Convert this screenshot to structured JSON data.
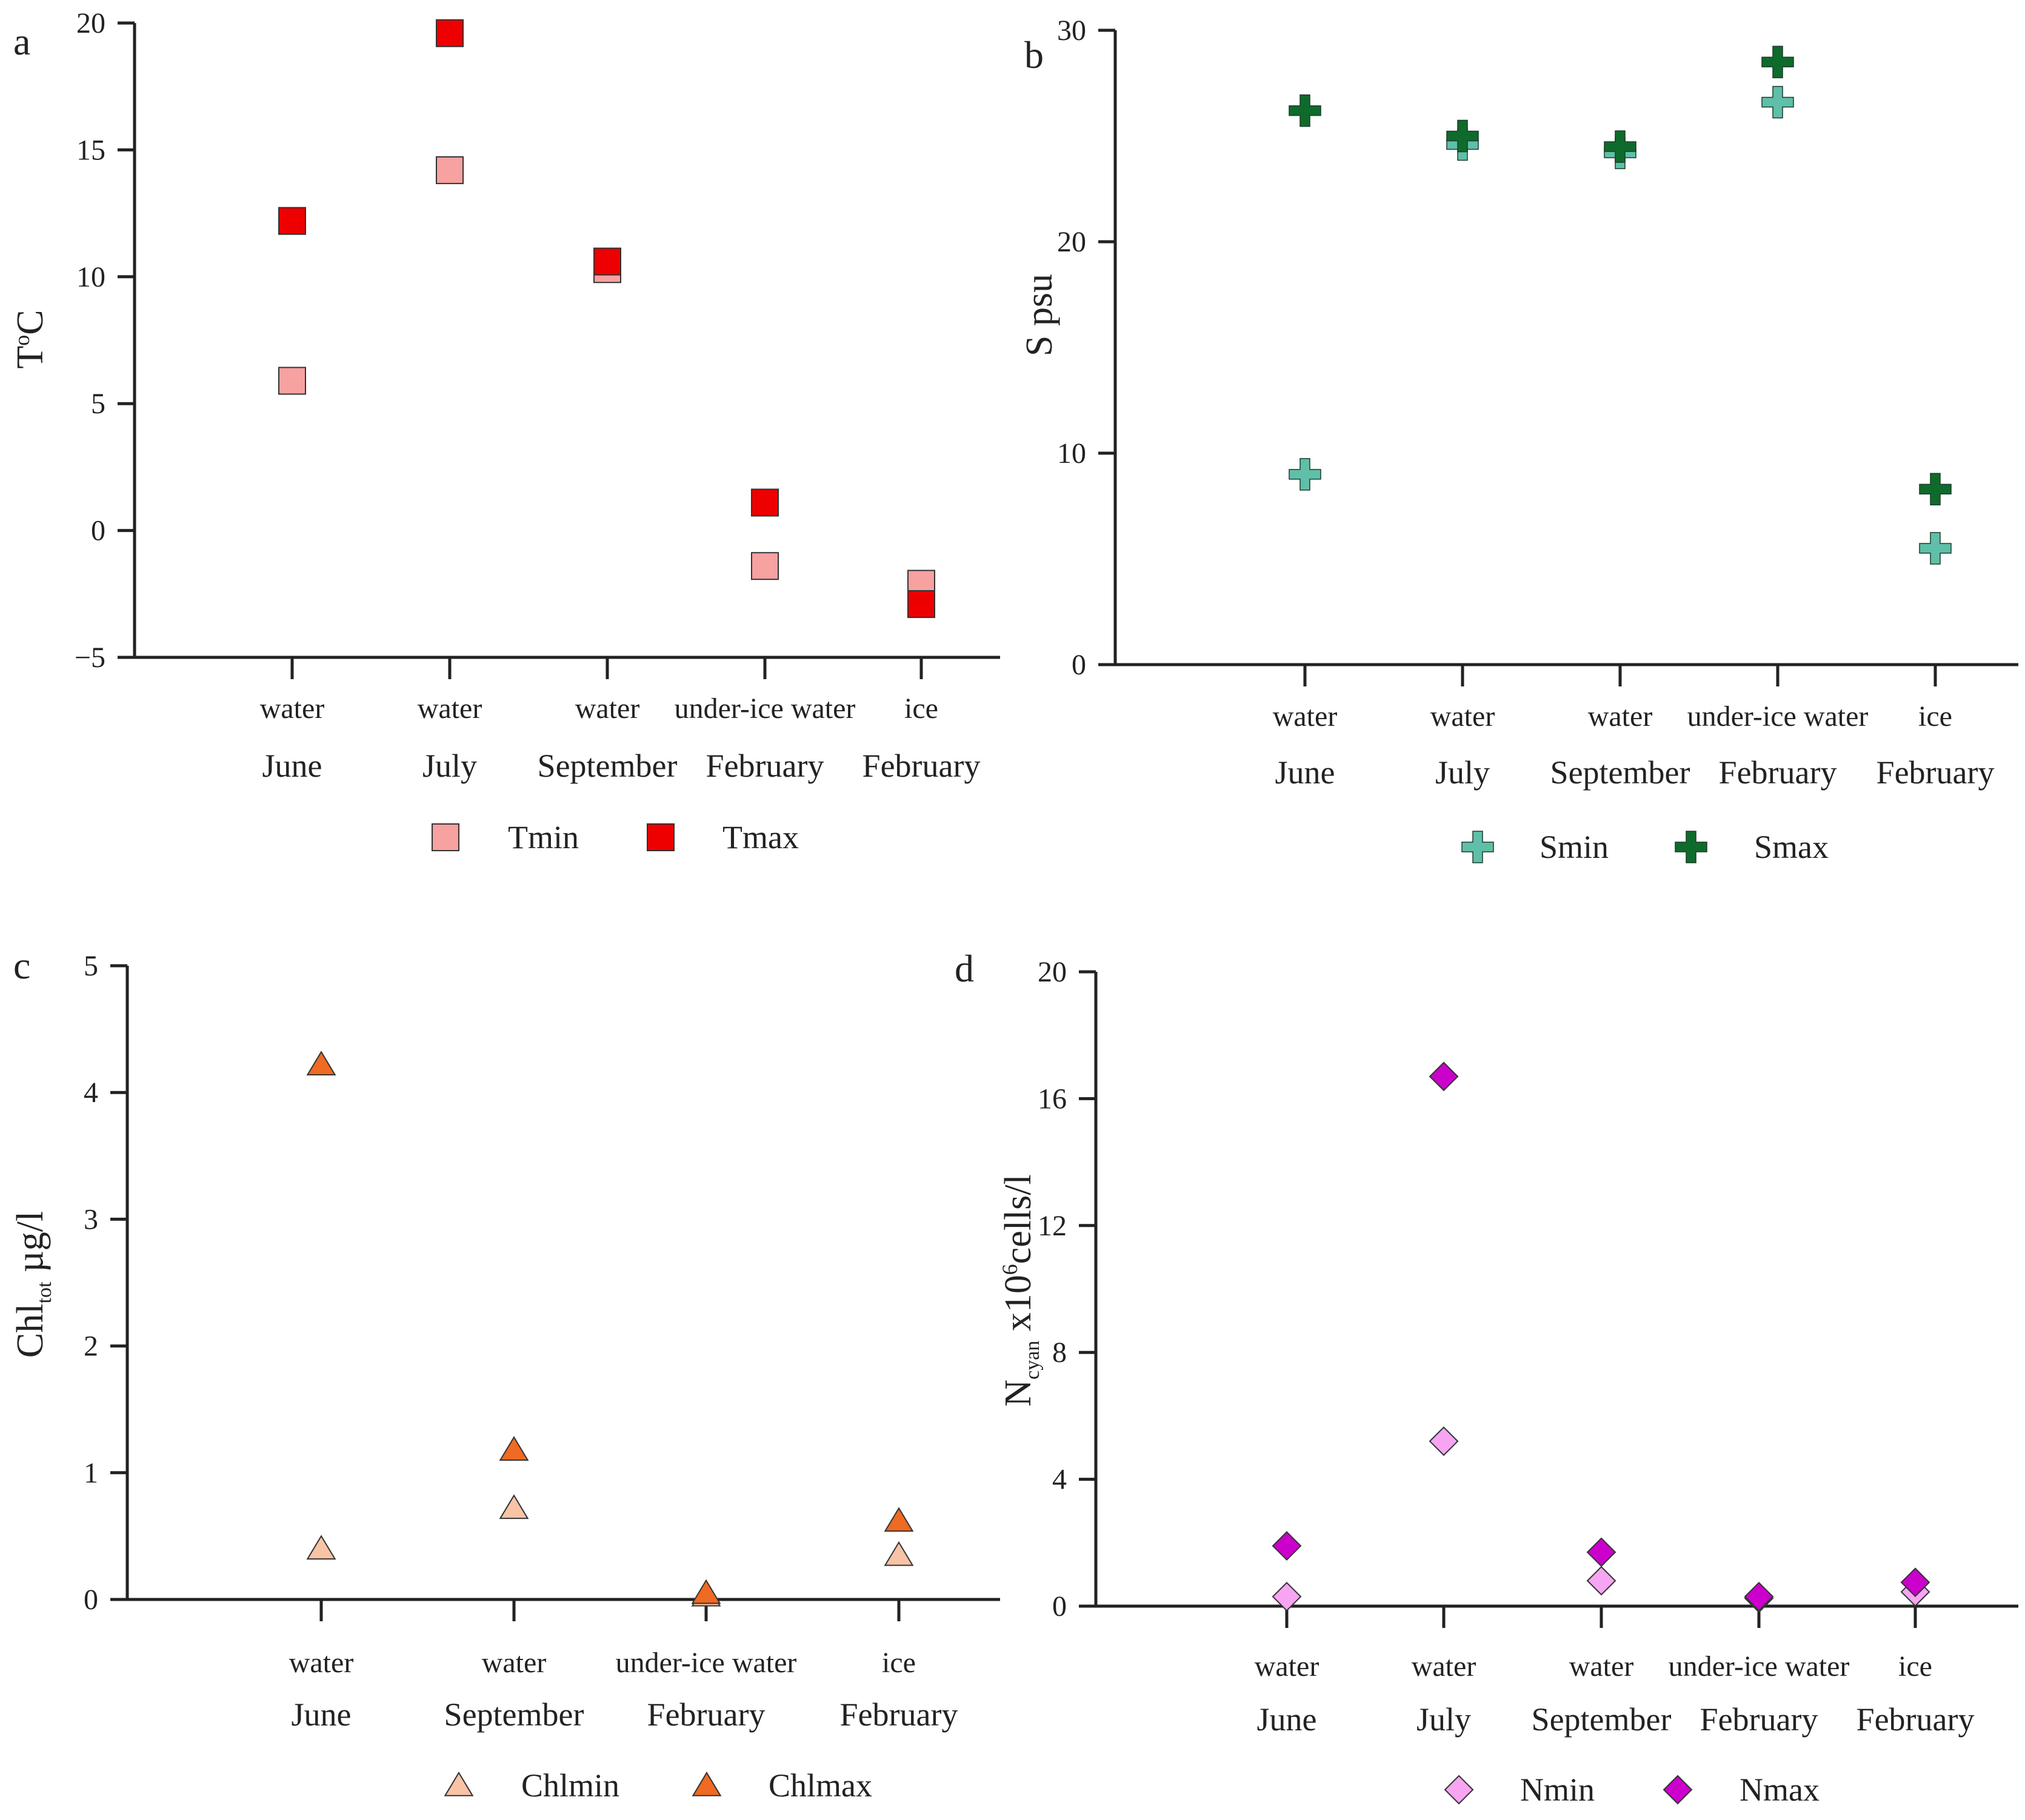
{
  "chart_data": [
    {
      "panel": "a",
      "type": "scatter",
      "ylabel": "T°C",
      "ylabel_main": "T",
      "ylabel_sup": "o",
      "ylabel_sub": "",
      "ylabel_rest": "C",
      "ylim": [
        -5,
        20
      ],
      "yticks": [
        -5,
        0,
        5,
        10,
        15,
        20
      ],
      "ytick_labels": [
        "−5",
        "0",
        "5",
        "10",
        "15",
        "20"
      ],
      "categories": [
        "water",
        "water",
        "water",
        "under-ice water",
        "ice"
      ],
      "groups": [
        "June",
        "July",
        "September",
        "February",
        "February"
      ],
      "marker": "square",
      "series": [
        {
          "name": "Tmin",
          "color": "#f7a1a1",
          "values": [
            5.9,
            14.2,
            10.3,
            -1.4,
            -2.1
          ]
        },
        {
          "name": "Tmax",
          "color": "#ee0000",
          "values": [
            12.2,
            19.6,
            10.6,
            1.1,
            -2.9
          ]
        }
      ]
    },
    {
      "panel": "b",
      "type": "scatter",
      "ylabel": "S psu",
      "ylabel_main": "S",
      "ylabel_sup": "",
      "ylabel_sub": "",
      "ylabel_rest": " psu",
      "ylim": [
        0,
        30
      ],
      "yticks": [
        0,
        10,
        20,
        30
      ],
      "ytick_labels": [
        "0",
        "10",
        "20",
        "30"
      ],
      "categories": [
        "water",
        "water",
        "water",
        "under-ice water",
        "ice"
      ],
      "groups": [
        "June",
        "July",
        "September",
        "February",
        "February"
      ],
      "marker": "plus",
      "series": [
        {
          "name": "Smin",
          "color": "#5fbfa8",
          "values": [
            9.0,
            24.6,
            24.2,
            26.6,
            5.5
          ]
        },
        {
          "name": "Smax",
          "color": "#0e6b2c",
          "values": [
            26.2,
            25.0,
            24.5,
            28.5,
            8.3
          ]
        }
      ]
    },
    {
      "panel": "c",
      "type": "scatter",
      "ylabel": "Chltot µg/l",
      "ylabel_main": "Chl",
      "ylabel_sup": "",
      "ylabel_sub": "tot",
      "ylabel_rest": " µg/l",
      "ylim": [
        0,
        5
      ],
      "yticks": [
        0,
        1,
        2,
        3,
        4,
        5
      ],
      "ytick_labels": [
        "0",
        "1",
        "2",
        "3",
        "4",
        "5"
      ],
      "categories": [
        "water",
        "water",
        "under-ice water",
        "ice"
      ],
      "groups": [
        "June",
        "September",
        "February",
        "February"
      ],
      "marker": "triangle",
      "series": [
        {
          "name": "Chlmin",
          "color": "#f9c3a6",
          "values": [
            0.4,
            0.72,
            0.03,
            0.35
          ]
        },
        {
          "name": "Chlmax",
          "color": "#ef6a22",
          "values": [
            4.22,
            1.18,
            0.05,
            0.62
          ]
        }
      ]
    },
    {
      "panel": "d",
      "type": "scatter",
      "ylabel": "Ncyan x10^6cells/l",
      "ylabel_main": "N",
      "ylabel_sup": "",
      "ylabel_sub": "cyan",
      "ylabel_rest": " x10",
      "ylabel_sup2": "6",
      "ylabel_rest2": "cells/l",
      "ylim": [
        0,
        20
      ],
      "yticks": [
        0,
        4,
        8,
        12,
        16,
        20
      ],
      "ytick_labels": [
        "0",
        "4",
        "8",
        "12",
        "16",
        "20"
      ],
      "categories": [
        "water",
        "water",
        "water",
        "under-ice water",
        "ice"
      ],
      "groups": [
        "June",
        "July",
        "September",
        "February",
        "February"
      ],
      "marker": "diamond",
      "series": [
        {
          "name": "Nmin",
          "color": "#f7a5f2",
          "values": [
            0.3,
            5.2,
            0.8,
            0.25,
            0.45
          ]
        },
        {
          "name": "Nmax",
          "color": "#cc00cc",
          "values": [
            1.9,
            16.7,
            1.7,
            0.3,
            0.75
          ]
        }
      ]
    }
  ]
}
